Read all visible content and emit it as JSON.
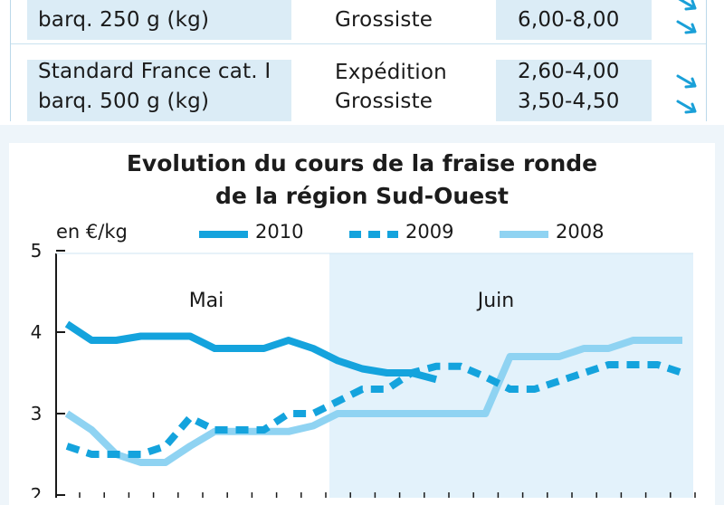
{
  "table": {
    "rows": [
      {
        "label_line1": "",
        "label_line2": "barq. 250 g (kg)",
        "stages": [
          "",
          "Grossiste"
        ],
        "prices": [
          "",
          "6,00-8,00"
        ],
        "trends": [
          "down",
          "down"
        ]
      },
      {
        "label_line1": "Standard France cat. I",
        "label_line2": "barq. 500 g (kg)",
        "stages": [
          "Expédition",
          "Grossiste"
        ],
        "prices": [
          "2,60-4,00",
          "3,50-4,50"
        ],
        "trends": [
          "down",
          "down"
        ]
      }
    ],
    "colors": {
      "cell_bg": "#dbecf6",
      "arrow": "#1aa0d8"
    }
  },
  "chart_data": {
    "type": "line",
    "title_line1": "Evolution du cours de la fraise ronde",
    "title_line2": "de la région Sud-Ouest",
    "ylabel": "en €/kg",
    "ylim": [
      2,
      5
    ],
    "yticks": [
      "2",
      "3",
      "4",
      "5"
    ],
    "months": [
      "Mai",
      "Juin"
    ],
    "x": [
      1,
      2,
      3,
      4,
      5,
      6,
      7,
      8,
      9,
      10,
      11,
      12,
      13,
      14,
      15,
      16,
      17,
      18,
      19,
      20,
      21,
      22,
      23,
      24,
      25,
      26
    ],
    "series": [
      {
        "name": "2010",
        "color": "#14a3dd",
        "style": "solid",
        "values": [
          4.1,
          3.9,
          3.9,
          3.95,
          3.95,
          3.95,
          3.8,
          3.8,
          3.8,
          3.9,
          3.8,
          3.65,
          3.55,
          3.5,
          3.5,
          3.42,
          null,
          null,
          null,
          null,
          null,
          null,
          null,
          null,
          null,
          null
        ]
      },
      {
        "name": "2009",
        "color": "#14a3dd",
        "style": "dashed",
        "values": [
          2.6,
          2.5,
          2.5,
          2.5,
          2.6,
          2.95,
          2.8,
          2.8,
          2.8,
          3.0,
          3.0,
          3.15,
          3.3,
          3.3,
          3.5,
          3.58,
          3.58,
          3.45,
          3.3,
          3.3,
          3.4,
          3.5,
          3.6,
          3.6,
          3.6,
          3.5
        ]
      },
      {
        "name": "2008",
        "color": "#8fd3f2",
        "style": "solid",
        "values": [
          3.0,
          2.8,
          2.5,
          2.4,
          2.4,
          2.6,
          2.78,
          2.78,
          2.78,
          2.78,
          2.85,
          3.0,
          3.0,
          3.0,
          3.0,
          3.0,
          3.0,
          3.0,
          3.7,
          3.7,
          3.7,
          3.8,
          3.8,
          3.9,
          3.9,
          3.9
        ]
      }
    ],
    "legend": {
      "placement": "top"
    },
    "colors": {
      "june_band": "#e3f2fb",
      "plot_bg": "#ffffff",
      "axis": "#1a1a1a"
    }
  }
}
